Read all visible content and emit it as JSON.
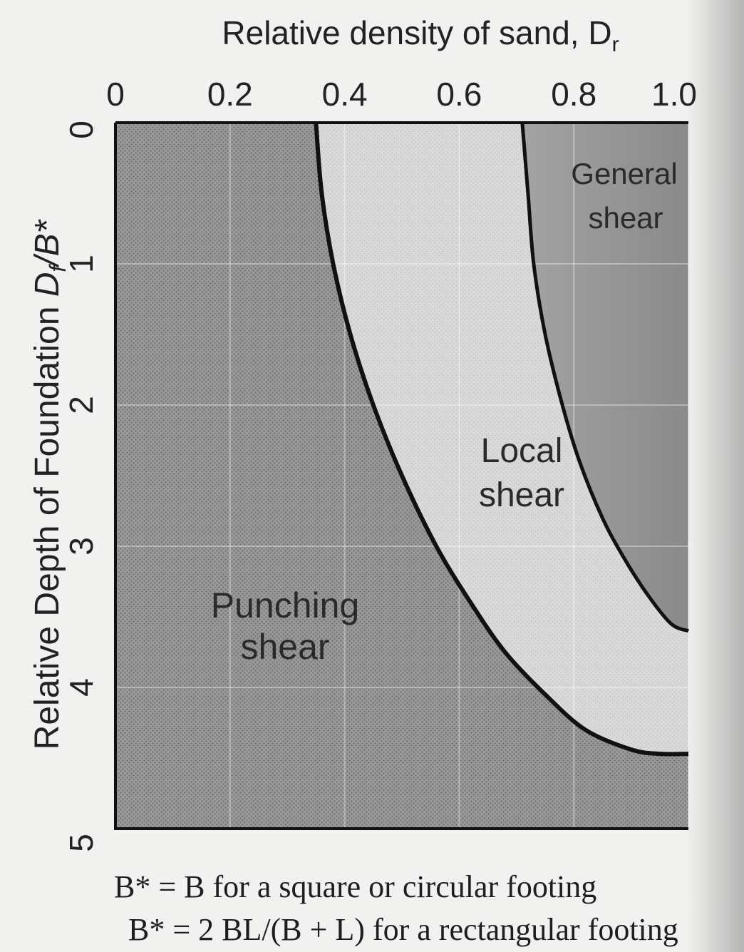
{
  "chart_data": {
    "type": "area",
    "title": "Relative density of sand, D",
    "title_subscript": "r",
    "xlabel": "Relative density of sand, Dr",
    "ylabel_main": "Relative Depth of Foundation ",
    "ylabel_var": "D",
    "ylabel_sub": "f",
    "ylabel_tail": "/B*",
    "x_ticks": [
      "0",
      "0.2",
      "0.4",
      "0.6",
      "0.8",
      "1.0"
    ],
    "y_ticks": [
      "0",
      "1",
      "2",
      "3",
      "4",
      "5"
    ],
    "x_origin_label": "0",
    "xlim": [
      0,
      1
    ],
    "ylim": [
      0,
      5
    ],
    "y_inverted": true,
    "grid": true,
    "regions": [
      {
        "name": "Punching shear",
        "line1": "Punching",
        "line2": "shear",
        "fill": "#8f8f8f"
      },
      {
        "name": "Local shear",
        "line1": "Local",
        "line2": "shear",
        "fill": "#d6d6d6"
      },
      {
        "name": "General shear",
        "line1": "General",
        "line2": "shear",
        "fill": "#9b9b9b"
      }
    ],
    "series": [
      {
        "name": "punching-local boundary",
        "x": [
          0.35,
          0.36,
          0.38,
          0.41,
          0.45,
          0.5,
          0.56,
          0.62,
          0.68,
          0.75,
          0.82,
          0.9,
          0.95,
          1.0
        ],
        "y": [
          0.0,
          0.5,
          1.0,
          1.5,
          2.0,
          2.5,
          3.0,
          3.4,
          3.75,
          4.05,
          4.3,
          4.44,
          4.47,
          4.47
        ]
      },
      {
        "name": "local-general boundary",
        "x": [
          0.71,
          0.72,
          0.73,
          0.75,
          0.78,
          0.81,
          0.85,
          0.89,
          0.93,
          0.97,
          1.0
        ],
        "y": [
          0.0,
          0.5,
          1.0,
          1.5,
          2.0,
          2.4,
          2.8,
          3.1,
          3.35,
          3.55,
          3.6
        ]
      }
    ]
  },
  "footnotes": {
    "line1": "B* = B for a square or circular footing",
    "line2": "B* = 2 BL/(B + L) for a rectangular footing"
  }
}
